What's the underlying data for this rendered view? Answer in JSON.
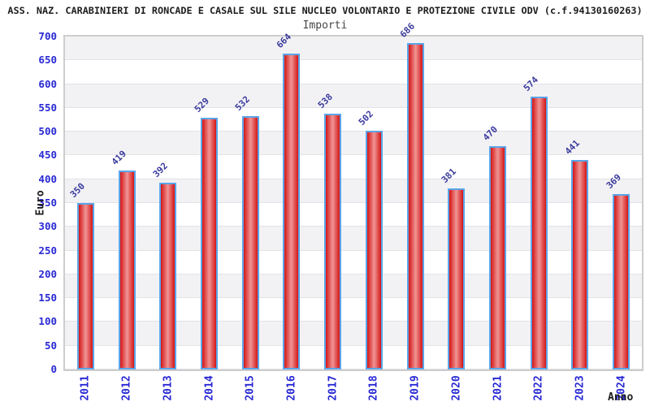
{
  "header": {
    "title": "ASS. NAZ. CARABINIERI DI RONCADE E CASALE SUL SILE NUCLEO VOLONTARIO E PROTEZIONE CIVILE ODV (c.f.94130160263)",
    "subtitle": "Importi"
  },
  "chart_data": {
    "type": "bar",
    "title": "Importi",
    "categories": [
      "2011",
      "2012",
      "2013",
      "2014",
      "2015",
      "2016",
      "2017",
      "2018",
      "2019",
      "2020",
      "2021",
      "2022",
      "2023",
      "2024"
    ],
    "values": [
      350,
      419,
      392,
      529,
      532,
      664,
      538,
      502,
      686,
      381,
      470,
      574,
      441,
      369
    ],
    "xlabel": "Anno",
    "ylabel": "Euro",
    "ylim": [
      0,
      700
    ],
    "ytick_step": 50,
    "legend": "none",
    "grid": "horizontal-alternating-bands",
    "bar_labels_rotation_deg": -45,
    "xtick_rotation_deg": -90
  },
  "colors": {
    "bar_fill_edge": "#d51515",
    "bar_fill_mid": "#f09595",
    "bar_border": "#5ba4e8",
    "tick_label": "#2828d4",
    "value_label": "#3a3a9e",
    "band_gray": "#f2f2f4",
    "band_white": "#ffffff",
    "grid_line": "#e3e3e7",
    "plot_border": "#cdcdcd",
    "title": "#1c1c1c",
    "subtitle": "#454545"
  }
}
